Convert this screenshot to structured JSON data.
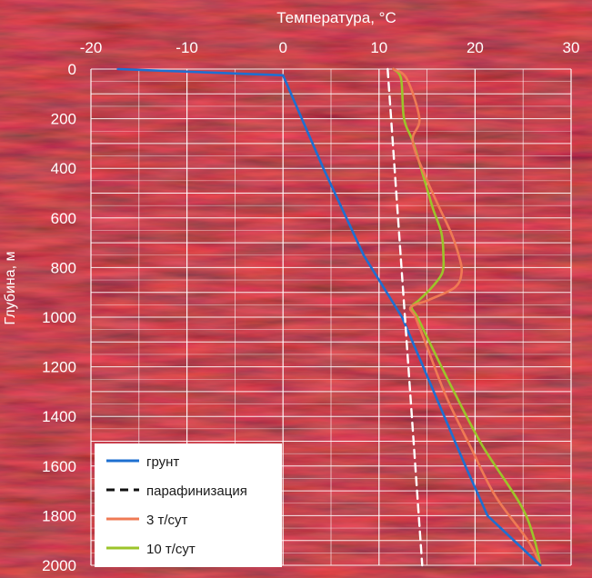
{
  "chart_data": {
    "type": "line",
    "xlabel": "Температура, °С",
    "ylabel": "Глубина, м",
    "x_axis_position": "top",
    "y_axis_inverted": true,
    "xlim": [
      -20,
      30
    ],
    "ylim": [
      0,
      2000
    ],
    "xticks": [
      -20,
      -10,
      0,
      10,
      20,
      30
    ],
    "yticks": [
      0,
      200,
      400,
      600,
      800,
      1000,
      1200,
      1400,
      1600,
      1800,
      2000
    ],
    "grid": true,
    "legend_position": "bottom-left",
    "background": "red textured rock photograph",
    "series": [
      {
        "name": "грунт",
        "color": "#1e6fd0",
        "style": "solid",
        "points": [
          [
            -17.2,
            0
          ],
          [
            0,
            25
          ],
          [
            4.2,
            400
          ],
          [
            8.4,
            750
          ],
          [
            12.4,
            1000
          ],
          [
            14.6,
            1200
          ],
          [
            16.8,
            1400
          ],
          [
            19.0,
            1600
          ],
          [
            21.3,
            1800
          ],
          [
            26.8,
            2000
          ]
        ]
      },
      {
        "name": "парафинизация",
        "color": "#ffffff",
        "style": "dashed",
        "points": [
          [
            10.9,
            0
          ],
          [
            14.5,
            2000
          ]
        ]
      },
      {
        "name": "3 т/сут",
        "color": "#ef7a54",
        "style": "solid",
        "points": [
          [
            11.5,
            0
          ],
          [
            12.9,
            40
          ],
          [
            14.2,
            200
          ],
          [
            13.5,
            290
          ],
          [
            14.8,
            430
          ],
          [
            16.3,
            560
          ],
          [
            17.5,
            660
          ],
          [
            18.3,
            750
          ],
          [
            18.6,
            820
          ],
          [
            17.9,
            880
          ],
          [
            15.2,
            930
          ],
          [
            13.3,
            960
          ],
          [
            13.8,
            1000
          ],
          [
            15.0,
            1120
          ],
          [
            17.0,
            1320
          ],
          [
            19.5,
            1520
          ],
          [
            22.1,
            1720
          ],
          [
            25.5,
            1900
          ],
          [
            26.8,
            2000
          ]
        ]
      },
      {
        "name": "10 т/сут",
        "color": "#9cc42a",
        "style": "solid",
        "points": [
          [
            11.5,
            0
          ],
          [
            12.3,
            40
          ],
          [
            12.6,
            200
          ],
          [
            13.5,
            290
          ],
          [
            14.6,
            430
          ],
          [
            15.6,
            560
          ],
          [
            16.5,
            660
          ],
          [
            16.7,
            750
          ],
          [
            16.6,
            820
          ],
          [
            15.5,
            880
          ],
          [
            14.2,
            930
          ],
          [
            13.4,
            960
          ],
          [
            14.0,
            1000
          ],
          [
            15.5,
            1120
          ],
          [
            17.8,
            1300
          ],
          [
            20.8,
            1520
          ],
          [
            24.8,
            1760
          ],
          [
            26.2,
            1900
          ],
          [
            26.8,
            2000
          ]
        ]
      }
    ]
  }
}
